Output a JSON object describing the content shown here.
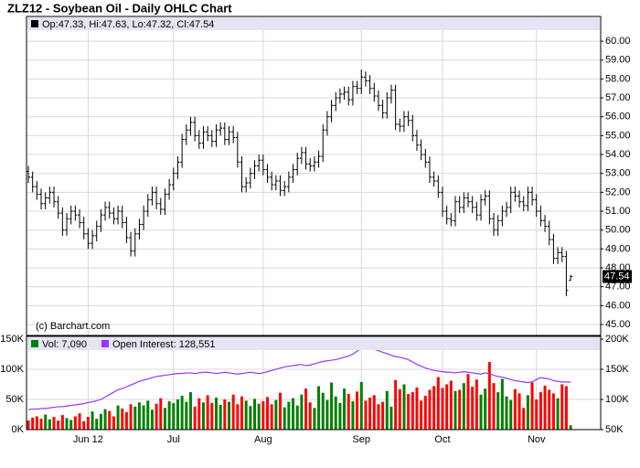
{
  "chart_data": [
    {
      "type": "ohlc",
      "title": "ZLZ12 - Soybean Oil - Daily OHLC Chart",
      "legend_text": "Op:47.33, Hi:47.63, Lo:47.32, Cl:47.54",
      "credit": "(c) Barchart.com",
      "color": "#000000",
      "grid": true,
      "ylim": [
        44.42,
        61.31
      ],
      "yticks": [
        {
          "value": 45,
          "label": "45.00"
        },
        {
          "value": 46,
          "label": "46.00"
        },
        {
          "value": 47,
          "label": "47.00"
        },
        {
          "value": 48,
          "label": "48.00"
        },
        {
          "value": 49,
          "label": "49.00"
        },
        {
          "value": 50,
          "label": "50.00"
        },
        {
          "value": 51,
          "label": "51.00"
        },
        {
          "value": 52,
          "label": "52.00"
        },
        {
          "value": 53,
          "label": "53.00"
        },
        {
          "value": 54,
          "label": "54.00"
        },
        {
          "value": 55,
          "label": "55.00"
        },
        {
          "value": 56,
          "label": "56.00"
        },
        {
          "value": 57,
          "label": "57.00"
        },
        {
          "value": 58,
          "label": "58.00"
        },
        {
          "value": 59,
          "label": "59.00"
        },
        {
          "value": 60,
          "label": "60.00"
        }
      ],
      "open": [
        53.1,
        52.8,
        52.3,
        51.9,
        51.4,
        51.7,
        52.0,
        51.5,
        50.9,
        50.0,
        50.6,
        51.0,
        50.8,
        50.4,
        49.8,
        49.3,
        49.7,
        50.2,
        50.8,
        51.2,
        50.9,
        50.6,
        51.0,
        50.4,
        49.6,
        48.9,
        49.8,
        50.3,
        51.0,
        51.6,
        52.0,
        51.4,
        51.1,
        51.9,
        52.4,
        53.0,
        53.6,
        54.8,
        55.3,
        55.7,
        55.0,
        54.6,
        55.2,
        55.0,
        54.7,
        55.3,
        55.4,
        54.8,
        55.2,
        54.9,
        53.6,
        52.3,
        52.5,
        53.0,
        53.4,
        53.7,
        53.2,
        52.8,
        52.4,
        52.6,
        52.1,
        52.3,
        52.8,
        53.2,
        53.8,
        54.1,
        53.5,
        53.4,
        53.6,
        53.9,
        55.3,
        56.0,
        56.6,
        57.0,
        57.2,
        57.3,
        56.9,
        57.6,
        57.5,
        58.1,
        57.9,
        57.5,
        57.1,
        56.6,
        56.2,
        57.0,
        57.4,
        55.6,
        55.5,
        56.0,
        55.8,
        55.0,
        54.5,
        54.0,
        53.6,
        52.8,
        52.6,
        52.0,
        51.0,
        50.6,
        50.5,
        51.5,
        51.2,
        51.7,
        51.5,
        51.2,
        50.8,
        51.6,
        51.8,
        50.6,
        50.0,
        50.5,
        51.0,
        51.2,
        52.0,
        51.8,
        51.5,
        51.3,
        52.0,
        51.6,
        51.0,
        50.5,
        50.2,
        49.5,
        48.5,
        48.8,
        48.6,
        47.33
      ],
      "high": [
        53.4,
        53.1,
        52.6,
        52.2,
        52.0,
        52.3,
        52.3,
        51.8,
        51.2,
        50.9,
        51.3,
        51.3,
        51.1,
        50.7,
        50.1,
        50.0,
        50.5,
        51.1,
        51.5,
        51.5,
        51.2,
        51.3,
        51.3,
        50.7,
        49.9,
        50.1,
        50.6,
        51.3,
        51.9,
        52.3,
        52.3,
        51.7,
        52.2,
        52.7,
        53.3,
        53.9,
        55.1,
        55.6,
        56.0,
        56.0,
        55.3,
        55.5,
        55.5,
        55.3,
        55.6,
        55.7,
        55.7,
        55.5,
        55.5,
        55.2,
        53.9,
        52.8,
        53.3,
        53.7,
        54.0,
        54.0,
        53.5,
        53.1,
        52.9,
        52.9,
        52.6,
        53.1,
        53.5,
        54.1,
        54.4,
        54.4,
        53.8,
        53.9,
        54.2,
        55.6,
        56.3,
        56.9,
        57.3,
        57.5,
        57.6,
        57.6,
        57.9,
        57.9,
        58.5,
        58.4,
        58.2,
        57.8,
        57.4,
        56.9,
        57.3,
        57.7,
        57.7,
        55.9,
        56.3,
        56.3,
        56.1,
        55.3,
        54.8,
        54.3,
        53.9,
        53.1,
        52.9,
        52.3,
        51.3,
        50.9,
        51.8,
        51.8,
        52.0,
        52.0,
        51.8,
        51.5,
        51.9,
        52.1,
        52.1,
        50.9,
        50.8,
        51.3,
        51.5,
        52.3,
        52.3,
        52.1,
        51.8,
        52.3,
        52.3,
        51.9,
        51.3,
        50.8,
        50.5,
        49.8,
        49.1,
        49.1,
        48.9,
        47.63
      ],
      "low": [
        52.5,
        52.0,
        51.6,
        51.1,
        51.1,
        51.4,
        51.2,
        50.6,
        49.7,
        49.7,
        50.3,
        50.5,
        50.1,
        49.5,
        49.0,
        49.0,
        49.4,
        49.9,
        50.5,
        50.6,
        50.3,
        50.3,
        50.1,
        49.3,
        48.6,
        48.6,
        49.5,
        50.0,
        50.7,
        51.3,
        51.1,
        50.8,
        50.8,
        51.6,
        52.1,
        52.7,
        53.3,
        54.5,
        55.0,
        54.7,
        54.3,
        54.3,
        54.7,
        54.4,
        54.4,
        55.0,
        54.5,
        54.5,
        54.6,
        53.3,
        52.0,
        52.0,
        52.2,
        52.7,
        53.1,
        52.9,
        52.5,
        52.1,
        52.1,
        51.8,
        51.8,
        52.0,
        52.5,
        52.9,
        53.5,
        53.2,
        53.1,
        53.1,
        53.3,
        53.6,
        55.0,
        55.7,
        56.3,
        56.7,
        56.9,
        56.6,
        56.6,
        57.2,
        57.2,
        57.6,
        57.2,
        56.8,
        56.3,
        55.9,
        55.9,
        56.7,
        55.3,
        55.2,
        55.2,
        55.5,
        54.7,
        54.2,
        53.7,
        53.3,
        52.5,
        52.3,
        51.7,
        50.7,
        50.3,
        50.2,
        50.2,
        50.9,
        50.9,
        51.2,
        50.9,
        50.5,
        50.5,
        51.3,
        50.3,
        49.7,
        49.7,
        50.2,
        50.7,
        50.9,
        51.5,
        51.2,
        51.0,
        51.0,
        51.3,
        50.7,
        50.2,
        49.9,
        49.2,
        48.2,
        48.2,
        48.3,
        46.5,
        47.32
      ],
      "close": [
        52.8,
        52.3,
        51.9,
        51.4,
        51.7,
        52.0,
        51.5,
        50.9,
        50.0,
        50.6,
        51.0,
        50.8,
        50.4,
        49.8,
        49.3,
        49.7,
        50.2,
        50.8,
        51.2,
        50.9,
        50.6,
        51.0,
        50.4,
        49.6,
        48.9,
        49.8,
        50.3,
        51.0,
        51.6,
        52.0,
        51.4,
        51.1,
        51.9,
        52.4,
        53.0,
        53.6,
        54.8,
        55.3,
        55.7,
        55.0,
        54.6,
        55.2,
        55.0,
        54.7,
        55.3,
        55.4,
        54.8,
        55.2,
        54.9,
        53.6,
        52.3,
        52.5,
        53.0,
        53.4,
        53.7,
        53.2,
        52.8,
        52.4,
        52.6,
        52.1,
        52.3,
        52.8,
        53.2,
        53.8,
        54.1,
        53.5,
        53.4,
        53.6,
        53.9,
        55.3,
        56.0,
        56.6,
        57.0,
        57.2,
        57.3,
        56.9,
        57.6,
        57.5,
        58.1,
        57.9,
        57.5,
        57.1,
        56.6,
        56.2,
        57.0,
        57.4,
        55.6,
        55.5,
        56.0,
        55.8,
        55.0,
        54.5,
        54.0,
        53.6,
        52.8,
        52.6,
        52.0,
        51.0,
        50.6,
        50.5,
        51.5,
        51.2,
        51.7,
        51.5,
        51.2,
        50.8,
        51.6,
        51.8,
        50.6,
        50.0,
        50.5,
        51.0,
        51.2,
        52.0,
        51.8,
        51.5,
        51.3,
        52.0,
        51.6,
        51.0,
        50.5,
        50.2,
        49.5,
        48.5,
        48.8,
        48.6,
        46.8,
        47.54
      ]
    },
    {
      "type": "bar",
      "grid": true,
      "categories": [
        null,
        null,
        null,
        null,
        null,
        null,
        null,
        null,
        null,
        null,
        null,
        null,
        null,
        null,
        "Jun 12",
        null,
        null,
        null,
        null,
        null,
        null,
        null,
        null,
        null,
        null,
        null,
        null,
        null,
        null,
        null,
        null,
        null,
        null,
        null,
        "Jul",
        null,
        null,
        null,
        null,
        null,
        null,
        null,
        null,
        null,
        null,
        null,
        null,
        null,
        null,
        null,
        null,
        null,
        null,
        null,
        null,
        "Aug",
        null,
        null,
        null,
        null,
        null,
        null,
        null,
        null,
        null,
        null,
        null,
        null,
        null,
        null,
        null,
        null,
        null,
        null,
        null,
        null,
        null,
        null,
        "Sep",
        null,
        null,
        null,
        null,
        null,
        null,
        null,
        null,
        null,
        null,
        null,
        null,
        null,
        null,
        null,
        null,
        null,
        null,
        "Oct",
        null,
        null,
        null,
        null,
        null,
        null,
        null,
        null,
        null,
        null,
        null,
        null,
        null,
        null,
        null,
        null,
        null,
        null,
        null,
        null,
        null,
        "Nov",
        null,
        null,
        null,
        null,
        null,
        null,
        null,
        null
      ],
      "ylim": [
        0,
        154500
      ],
      "yticks": [
        {
          "value": 0,
          "label": "0K"
        },
        {
          "value": 50000,
          "label": "50K"
        },
        {
          "value": 100000,
          "label": "100K"
        },
        {
          "value": 150000,
          "label": "150K"
        }
      ],
      "y2lim": [
        50000,
        204500
      ],
      "y2ticks": [
        {
          "value": 50000,
          "label": "50K"
        },
        {
          "value": 100000,
          "label": "100K"
        },
        {
          "value": 150000,
          "label": "150K"
        },
        {
          "value": 200000,
          "label": "200K"
        }
      ],
      "series": [
        {
          "name": "Vol: 7,090",
          "color": "#008000",
          "down_color": "#ff0000",
          "values": [
            15000,
            20000,
            22000,
            18000,
            25000,
            17000,
            21000,
            15000,
            24000,
            19000,
            16000,
            22000,
            27000,
            14000,
            21000,
            30000,
            18000,
            26000,
            34000,
            31000,
            22000,
            40000,
            35000,
            29000,
            42000,
            38000,
            45000,
            40000,
            48000,
            33000,
            43000,
            52000,
            36000,
            47000,
            44000,
            50000,
            56000,
            46000,
            62000,
            38000,
            52000,
            45000,
            57000,
            44000,
            53000,
            41000,
            50000,
            46000,
            58000,
            42000,
            55000,
            48000,
            39000,
            51000,
            43000,
            47000,
            54000,
            42000,
            49000,
            61000,
            37000,
            46000,
            52000,
            40000,
            58000,
            68000,
            45000,
            36000,
            72000,
            61000,
            49000,
            78000,
            55000,
            44000,
            68000,
            59000,
            47000,
            63000,
            79000,
            48000,
            53000,
            57000,
            42000,
            46000,
            64000,
            38000,
            82000,
            67000,
            75000,
            59000,
            62000,
            70000,
            48000,
            56000,
            66000,
            72000,
            87000,
            69000,
            75000,
            81000,
            64000,
            66000,
            77000,
            92000,
            71000,
            83000,
            58000,
            68000,
            112000,
            77000,
            62000,
            84000,
            55000,
            49000,
            67000,
            60000,
            36000,
            57000,
            78000,
            50000,
            62000,
            73000,
            66000,
            60000,
            52000,
            75000,
            72000,
            7090
          ]
        },
        {
          "name": "Open Interest: 128,551",
          "type": "line",
          "axis": "y2",
          "color": "#9933ff",
          "values": [
            83000,
            84000,
            84000,
            85000,
            85000,
            86000,
            87000,
            88000,
            88000,
            89000,
            90000,
            91000,
            92000,
            93000,
            95000,
            96000,
            98000,
            100000,
            104000,
            108000,
            112000,
            116000,
            118000,
            121000,
            124000,
            127000,
            130000,
            132000,
            134000,
            136000,
            138000,
            139000,
            140000,
            141000,
            142000,
            143000,
            143000,
            144000,
            144000,
            143000,
            144000,
            145000,
            145000,
            144000,
            143000,
            144000,
            145000,
            144000,
            143000,
            142000,
            143000,
            144000,
            145000,
            144000,
            143000,
            144000,
            146000,
            148000,
            150000,
            152000,
            154000,
            155000,
            156000,
            157000,
            158000,
            156000,
            157000,
            159000,
            161000,
            163000,
            164000,
            165000,
            166000,
            168000,
            170000,
            172000,
            175000,
            180000,
            186000,
            185000,
            184000,
            183000,
            181000,
            178000,
            176000,
            173000,
            171000,
            170000,
            168000,
            166000,
            162000,
            158000,
            155000,
            152000,
            150000,
            148000,
            147000,
            146000,
            145000,
            145000,
            144000,
            145000,
            146000,
            145000,
            144000,
            143000,
            142000,
            144000,
            143000,
            140000,
            138000,
            137000,
            135000,
            133000,
            131000,
            130000,
            129000,
            128000,
            129000,
            133000,
            136000,
            135000,
            134000,
            131000,
            130000,
            129000,
            129000,
            128551
          ]
        }
      ]
    }
  ]
}
